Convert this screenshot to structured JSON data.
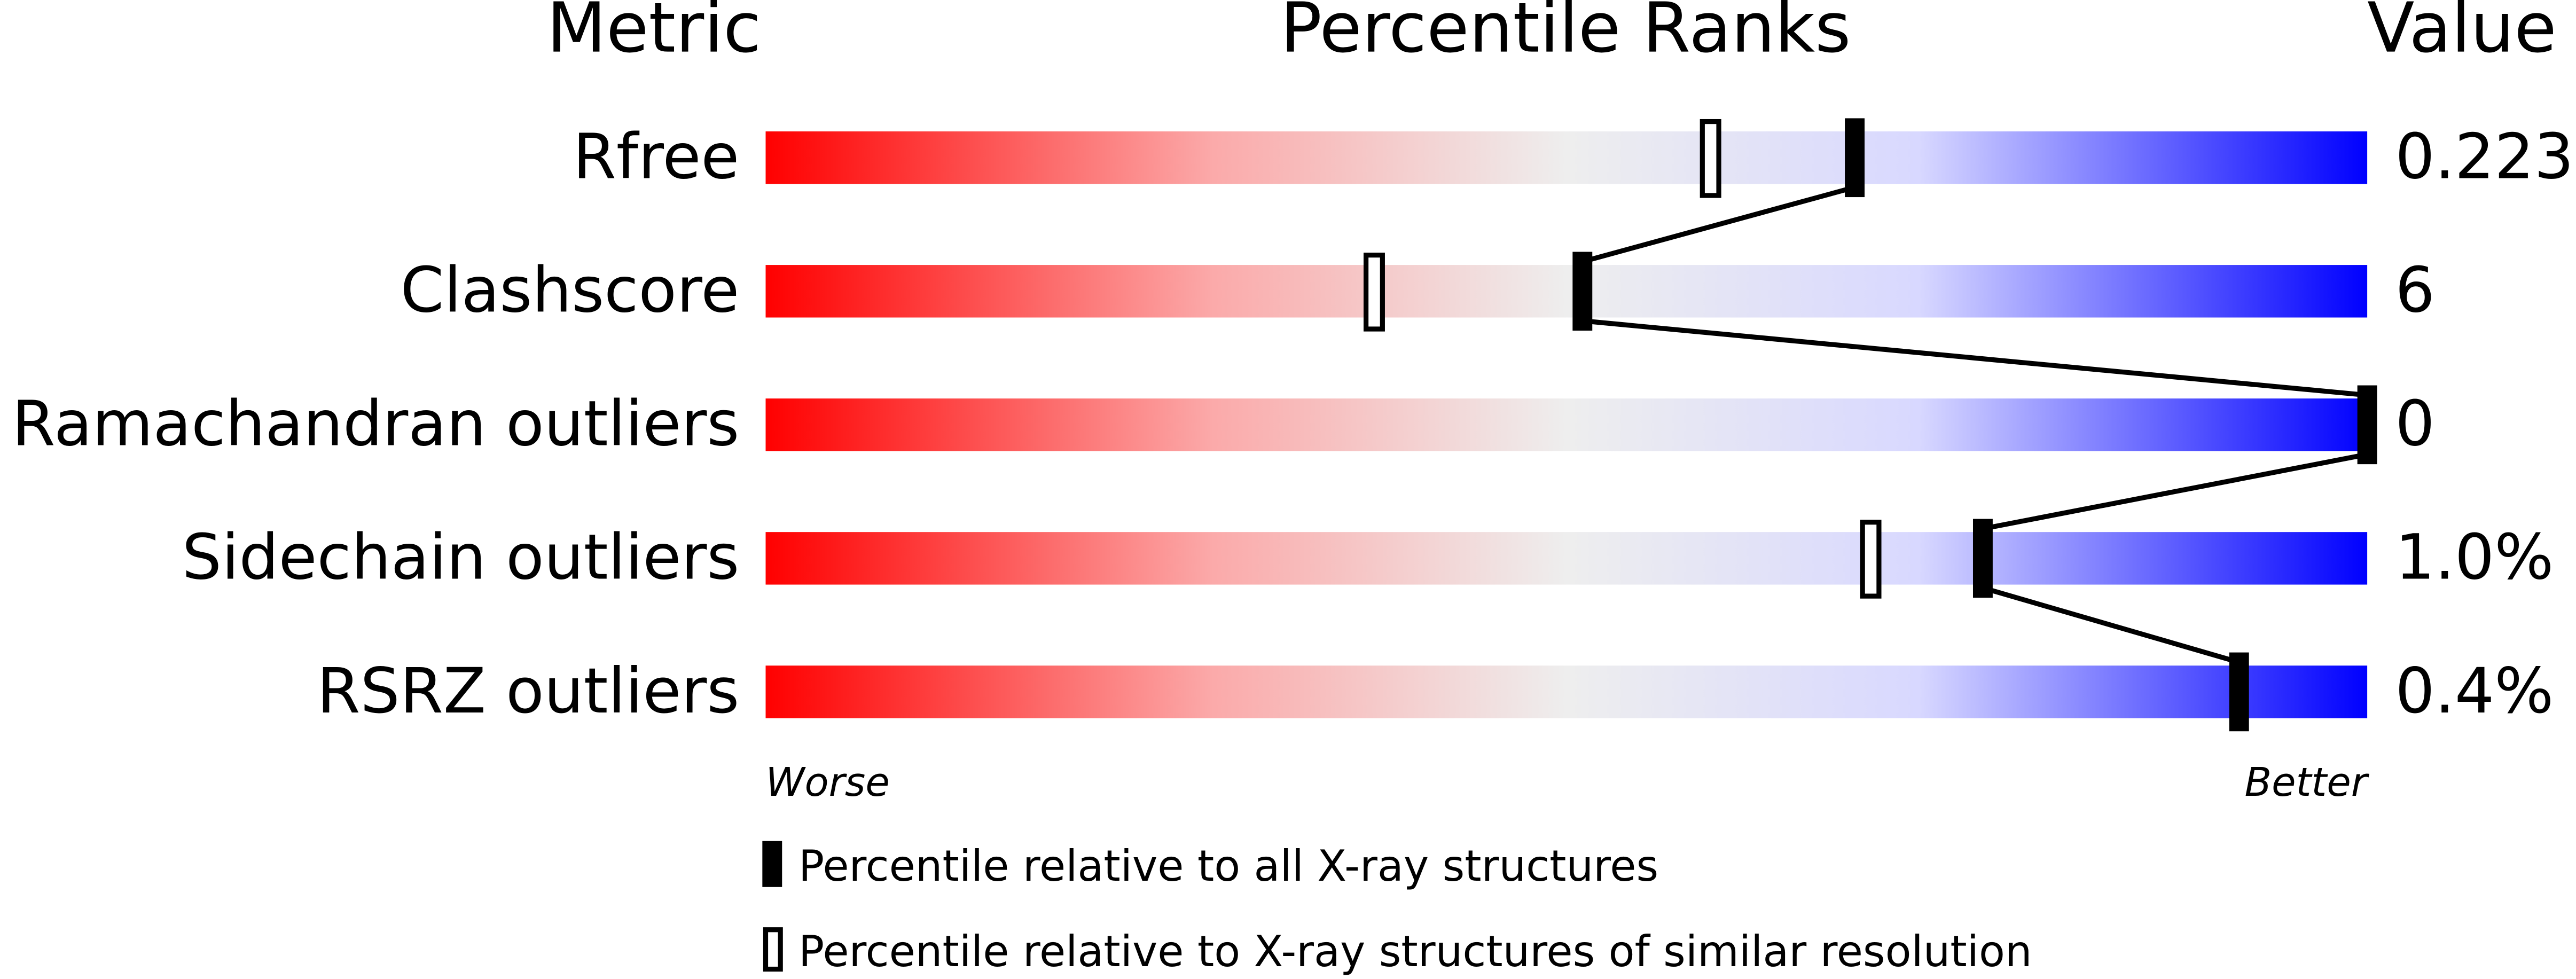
{
  "chart_data": {
    "type": "percentile",
    "headers": {
      "metric": "Metric",
      "ranks": "Percentile Ranks",
      "value": "Value"
    },
    "categories": [
      "Rfree",
      "Clashscore",
      "Ramachandran outliers",
      "Sidechain outliers",
      "RSRZ outliers"
    ],
    "metric_values": [
      "0.223",
      "6",
      "0",
      "1.0%",
      "0.4%"
    ],
    "series": [
      {
        "name": "Percentile relative to all X-ray structures",
        "color": "#000000",
        "values": [
          68,
          51,
          100,
          76,
          92
        ]
      },
      {
        "name": "Percentile relative to X-ray structures of similar resolution",
        "color": "#ffffff",
        "values": [
          59,
          38,
          null,
          69,
          null
        ]
      }
    ],
    "xlim": [
      0,
      100
    ],
    "axis_labels": {
      "worse": "Worse",
      "better": "Better"
    }
  }
}
